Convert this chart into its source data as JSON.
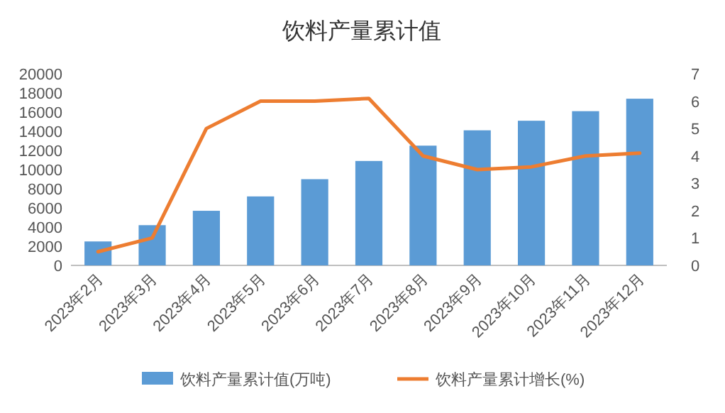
{
  "chart_data": {
    "type": "bar",
    "title": "饮料产量累计值",
    "categories": [
      "2023年2月",
      "2023年3月",
      "2023年4月",
      "2023年5月",
      "2023年6月",
      "2023年7月",
      "2023年8月",
      "2023年9月",
      "2023年10月",
      "2023年11月",
      "2023年12月"
    ],
    "series": [
      {
        "name": "饮料产量累计值(万吨)",
        "color": "#5b9bd5",
        "values": [
          2500,
          4200,
          5700,
          7200,
          9000,
          10900,
          12500,
          14100,
          15100,
          16100,
          17400
        ]
      },
      {
        "name": "饮料产量累计增长(%)",
        "type": "line",
        "axis": "y2",
        "color": "#ed7d31",
        "values": [
          0.5,
          1.0,
          5.0,
          6.0,
          6.0,
          6.1,
          4.0,
          3.5,
          3.6,
          4.0,
          4.1
        ]
      }
    ],
    "ylim": [
      0,
      20000
    ],
    "yticks": [
      0,
      2000,
      4000,
      6000,
      8000,
      10000,
      12000,
      14000,
      16000,
      18000,
      20000
    ],
    "y2lim": [
      0,
      7
    ],
    "y2ticks": [
      0,
      1,
      2,
      3,
      4,
      5,
      6,
      7
    ],
    "legend": "bottom"
  }
}
